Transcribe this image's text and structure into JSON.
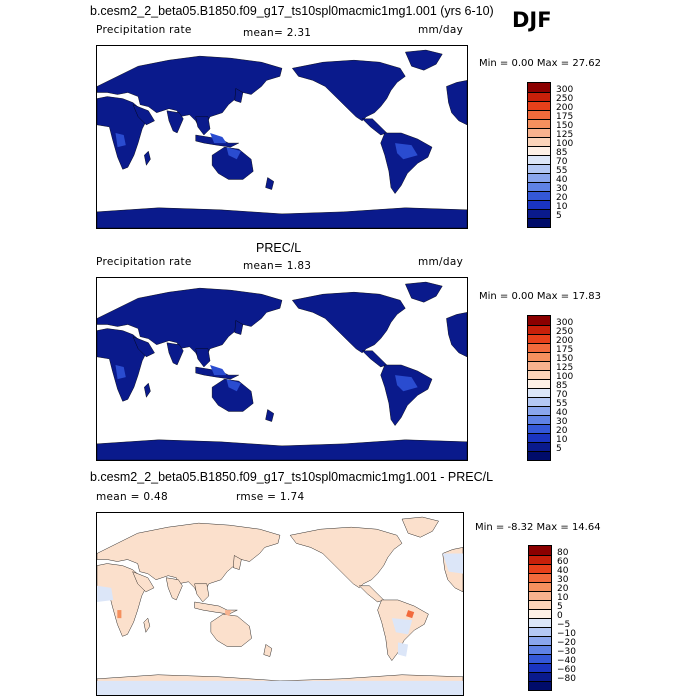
{
  "season": "DJF",
  "panels": [
    {
      "title": "b.cesm2_2_beta05.B1850.f09_g17_ts10spl0macmic1mg1.001 (yrs 6-10)",
      "left_label": "Precipitation rate",
      "stat1": "mean=   2.31",
      "stat2": "",
      "units": "mm/day",
      "minmax": "Min =   0.00 Max =  27.62",
      "land_color": "#0a1a8c",
      "ocean_color": "#ffffff",
      "colorbar": {
        "labels": [
          "300",
          "250",
          "200",
          "175",
          "150",
          "125",
          "100",
          "85",
          "70",
          "55",
          "40",
          "30",
          "20",
          "10",
          "5"
        ],
        "colors": [
          "#8b0000",
          "#c8200a",
          "#e8401a",
          "#f26a3c",
          "#f5905e",
          "#f8b28e",
          "#fbd4ba",
          "#fdf0e6",
          "#dce6f8",
          "#b4c8f4",
          "#8aa6ee",
          "#5f82e6",
          "#3458d8",
          "#1a34c0",
          "#0a1a8c",
          "#000c6a"
        ]
      }
    },
    {
      "title": "PREC/L",
      "left_label": "Precipitation rate",
      "stat1": "mean=   1.83",
      "stat2": "",
      "units": "mm/day",
      "minmax": "Min =   0.00 Max =  17.83",
      "land_color": "#0a1a8c",
      "ocean_color": "#ffffff",
      "colorbar": {
        "labels": [
          "300",
          "250",
          "200",
          "175",
          "150",
          "125",
          "100",
          "85",
          "70",
          "55",
          "40",
          "30",
          "20",
          "10",
          "5"
        ],
        "colors": [
          "#8b0000",
          "#c8200a",
          "#e8401a",
          "#f26a3c",
          "#f5905e",
          "#f8b28e",
          "#fbd4ba",
          "#fdf0e6",
          "#dce6f8",
          "#b4c8f4",
          "#8aa6ee",
          "#5f82e6",
          "#3458d8",
          "#1a34c0",
          "#0a1a8c",
          "#000c6a"
        ]
      }
    },
    {
      "title": "b.cesm2_2_beta05.B1850.f09_g17_ts10spl0macmic1mg1.001 - PREC/L",
      "left_label": "mean =   0.48",
      "stat1": "rmse =   1.74",
      "stat2": "",
      "units": "",
      "minmax": "Min =  -8.32 Max =  14.64",
      "land_color": "#fbe0cc",
      "ocean_color": "#ffffff",
      "colorbar": {
        "labels": [
          "80",
          "60",
          "40",
          "30",
          "20",
          "10",
          "5",
          "0",
          "−5",
          "−10",
          "−20",
          "−30",
          "−40",
          "−60",
          "−80"
        ],
        "colors": [
          "#8b0000",
          "#c8200a",
          "#e8401a",
          "#f26a3c",
          "#f5905e",
          "#f8b28e",
          "#fbd4ba",
          "#fdf0e6",
          "#dce6f8",
          "#b4c8f4",
          "#8aa6ee",
          "#5f82e6",
          "#3458d8",
          "#1a34c0",
          "#0a1a8c",
          "#000c6a"
        ]
      }
    }
  ]
}
